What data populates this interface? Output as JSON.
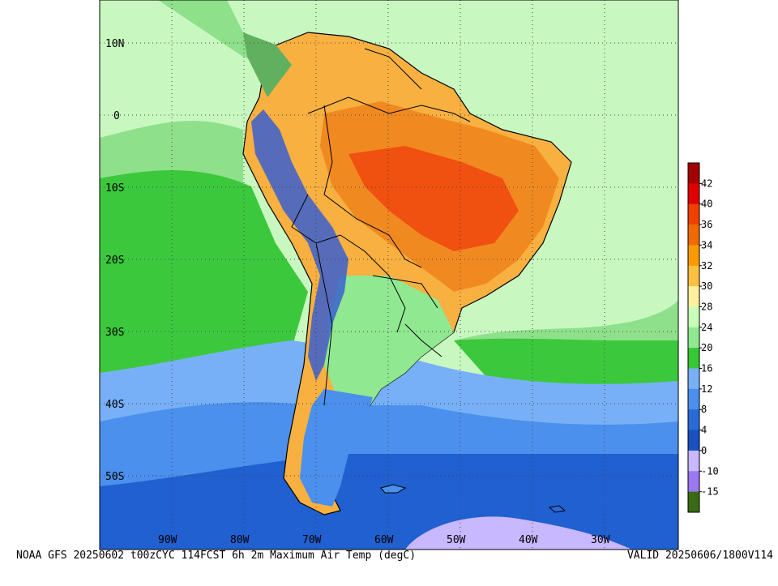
{
  "footer": {
    "left": "NOAA GFS 20250602 t00zCYC 114FCST 6h 2m Maximum Air Temp (degC)",
    "right": "VALID 20250606/1800V114"
  },
  "lat_labels": [
    "10N",
    "0",
    "10S",
    "20S",
    "30S",
    "40S",
    "50S"
  ],
  "lon_labels": [
    "90W",
    "80W",
    "70W",
    "60W",
    "50W",
    "40W",
    "30W"
  ],
  "colorbar": {
    "labels": [
      "42",
      "40",
      "36",
      "34",
      "32",
      "30",
      "28",
      "24",
      "20",
      "16",
      "12",
      "8",
      "4",
      "0",
      "-10",
      "-15"
    ],
    "colors": [
      "#a50000",
      "#e00000",
      "#f04000",
      "#f06a00",
      "#f89a00",
      "#fcc040",
      "#fff0a0",
      "#c8ffb8",
      "#90e890",
      "#36c836",
      "#78b0f8",
      "#4a90ec",
      "#2a6ad8",
      "#1a50c0",
      "#c8b8ff",
      "#9a78f0",
      "#3a6a14"
    ]
  },
  "colors": {
    "ocean_warm": "#c8f8c0",
    "ocean_mid": "#8ee08a",
    "ocean_cool": "#3cc83c",
    "ocean_cold1": "#78b0f8",
    "ocean_cold2": "#4a90ec",
    "ocean_cold3": "#2060d0",
    "land_hot": "#f08a20",
    "land_very_hot": "#f05010",
    "andes": "#3a60d0"
  }
}
